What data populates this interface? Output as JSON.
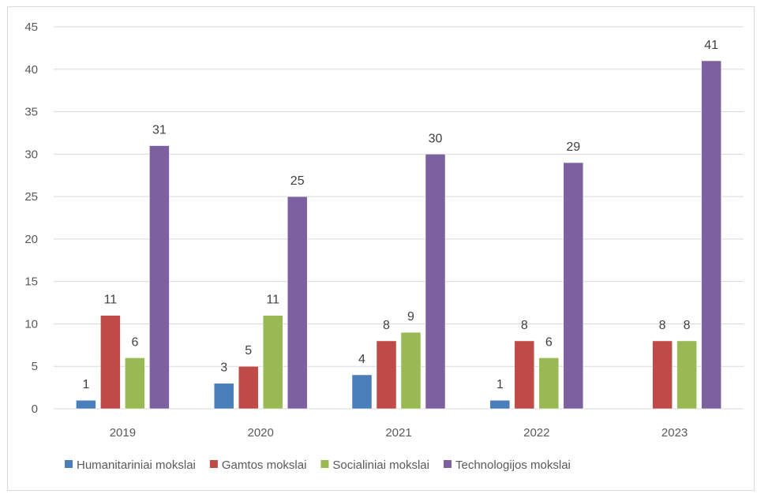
{
  "chart_data": {
    "type": "bar",
    "title": "",
    "xlabel": "",
    "ylabel": "",
    "categories": [
      "2019",
      "2020",
      "2021",
      "2022",
      "2023"
    ],
    "series": [
      {
        "name": "Humanitariniai mokslai",
        "color": "#4a7ebb",
        "values": [
          1,
          3,
          4,
          1,
          null
        ]
      },
      {
        "name": "Gamtos mokslai",
        "color": "#be4b48",
        "values": [
          11,
          5,
          8,
          8,
          8
        ]
      },
      {
        "name": "Socialiniai mokslai",
        "color": "#98b954",
        "values": [
          6,
          11,
          9,
          6,
          8
        ]
      },
      {
        "name": "Technologijos mokslai",
        "color": "#7d60a0",
        "values": [
          31,
          25,
          30,
          29,
          41
        ]
      }
    ],
    "ylim": [
      0,
      45
    ],
    "yticks": [
      0,
      5,
      10,
      15,
      20,
      25,
      30,
      35,
      40,
      45
    ],
    "grid": true,
    "legend_position": "bottom"
  }
}
